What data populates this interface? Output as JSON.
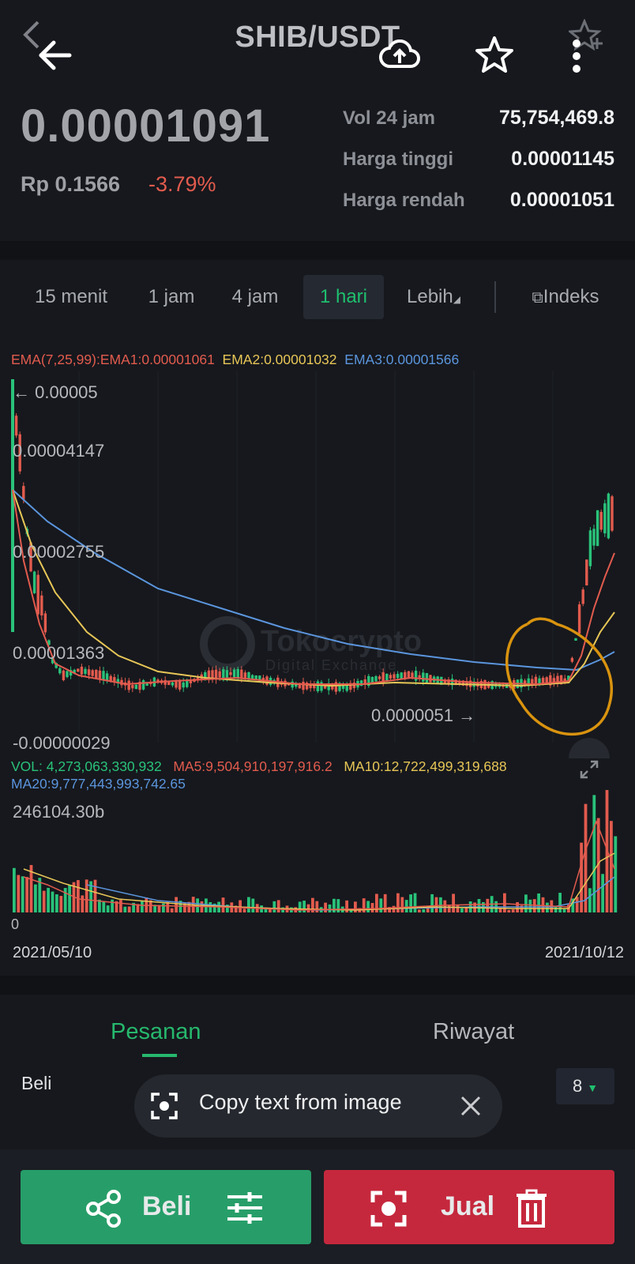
{
  "header": {
    "pair": "SHIB/USDT",
    "icons": [
      "back-arrow-icon",
      "cloud-upload-icon",
      "star-icon",
      "more-vertical-icon",
      "star-add-icon"
    ]
  },
  "ticker": {
    "price": "0.00001091",
    "fiat_price": "Rp 0.1566",
    "change_pct": "-3.79%",
    "stats": [
      {
        "label": "Vol 24 jam",
        "value": "75,754,469.8"
      },
      {
        "label": "Harga tinggi",
        "value": "0.00001145"
      },
      {
        "label": "Harga rendah",
        "value": "0.00001051"
      }
    ]
  },
  "timeframes": {
    "items": [
      "15 menit",
      "1 jam",
      "4 jam",
      "1 hari",
      "Lebih"
    ],
    "active": "1 hari",
    "index_label": "Indeks"
  },
  "chart": {
    "ema_label": "EMA(7,25,99):",
    "ema1": "EMA1:0.00001061",
    "ema2": "EMA2:0.00001032",
    "ema3": "EMA3:0.00001566",
    "price_axis": [
      "0.00005",
      "0.00004147",
      "0.00002755",
      "0.00001363",
      "-0.00000029"
    ],
    "max_marker_arrow": "←",
    "min_marker": "0.0000051",
    "min_marker_arrow": "→",
    "watermark": "Tokocrypto",
    "watermark_sub": "Digital Exchange",
    "volume": {
      "vol": "VOL: 4,273,063,330,932",
      "ma5": "MA5:9,504,910,197,916.2",
      "ma10": "MA10:12,722,499,319,688",
      "ma20": "MA20:9,777,443,993,742.65",
      "max_label": "246104.30b",
      "zero_label": "0"
    },
    "date_start": "2021/05/10",
    "date_end": "2021/10/12",
    "colors": {
      "up": "#29c27a",
      "down": "#e25b4e",
      "ema1": "#e25b4e",
      "ema2": "#e7c657",
      "ema3": "#5b95dd",
      "annotation": "#d9930f"
    }
  },
  "orders": {
    "tab_orders": "Pesanan",
    "tab_history": "Riwayat",
    "buy_label": "Beli",
    "depth": "8"
  },
  "overlay": {
    "copy_text": "Copy text from image"
  },
  "actions": {
    "buy": "Beli",
    "sell": "Jual"
  }
}
